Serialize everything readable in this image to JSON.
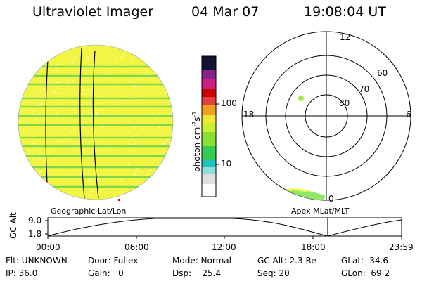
{
  "header": {
    "instrument": "Ultraviolet Imager",
    "date": "04 Mar 07",
    "time": "19:08:04 UT"
  },
  "colorbar": {
    "unit": "photon cm",
    "unit_exp1": "-2",
    "unit_s": "s",
    "unit_exp2": "-1",
    "tick_100": "100",
    "tick_10": "10"
  },
  "polar_plot": {
    "mlt_labels": {
      "top": "12",
      "left": "18",
      "right": "6",
      "bottom": "0"
    },
    "lat_labels": [
      "60",
      "70",
      "80"
    ]
  },
  "panels": {
    "left_label": "Geographic Lat/Lon",
    "right_label": "Apex  MLat/MLT"
  },
  "altitude_plot": {
    "ylabel": "GC Alt",
    "ytick_top": "9.0",
    "ytick_bottom": "1.8",
    "xticks": [
      "00:00",
      "06:00",
      "12:00",
      "18:00",
      "23:59"
    ]
  },
  "info": {
    "filter": "Flt: UNKNOWN",
    "door": "Door: Fullex",
    "mode": "Mode: Normal",
    "gc_alt": "GC Alt: 2.3 Re",
    "glat": "GLat: -34.6",
    "ip": "IP: 36.0",
    "gain": "Gain:   0",
    "dsp": "Dsp:    25.4",
    "seq": "Seq: 20",
    "glon": "GLon:  69.2"
  },
  "colors": {
    "disk_fill": "#f2f544",
    "stripe": "#6ad34a",
    "auroral": "#8fe86a",
    "time_marker": "#e00000"
  }
}
